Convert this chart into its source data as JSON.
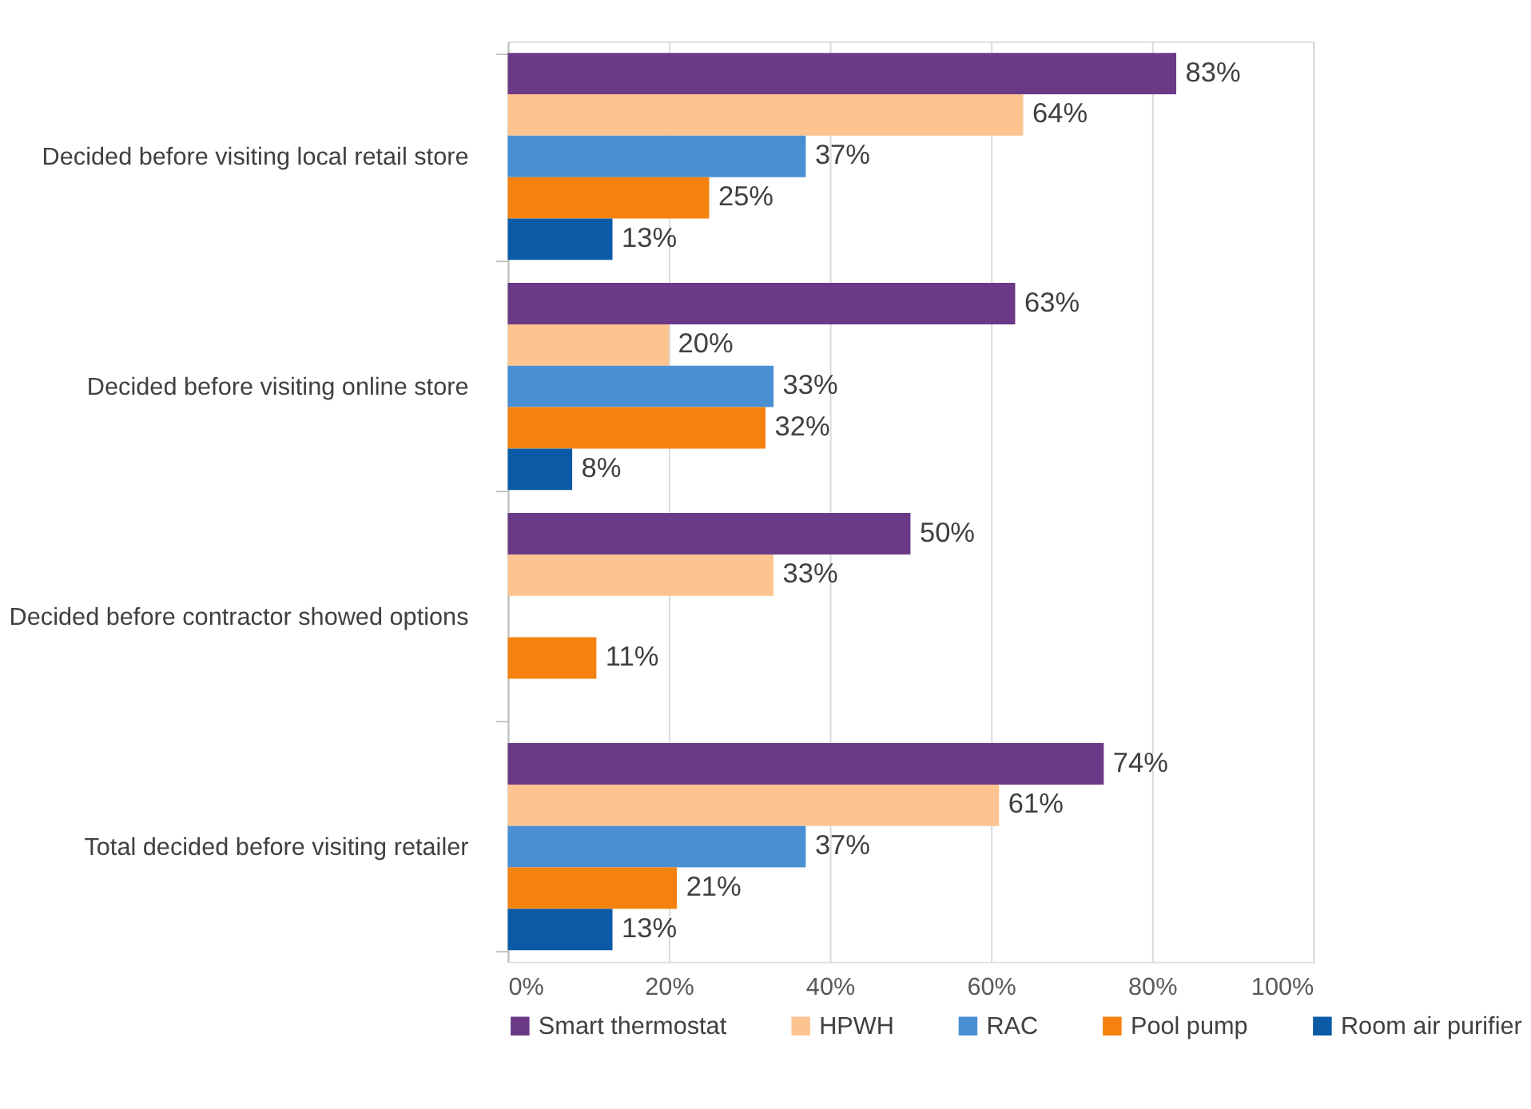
{
  "chart_data": {
    "type": "bar",
    "orientation": "horizontal",
    "categories": [
      "Decided before visiting local retail store",
      "Decided before visiting online store",
      "Decided before contractor showed options",
      "Total decided before visiting retailer"
    ],
    "series": [
      {
        "name": "Smart thermostat",
        "color": "#6a3a87",
        "values": [
          83,
          63,
          50,
          74
        ],
        "value_labels": [
          "83%",
          "63%",
          "50%",
          "74%"
        ]
      },
      {
        "name": "HPWH",
        "color": "#fdc491",
        "values": [
          64,
          20,
          33,
          61
        ],
        "value_labels": [
          "64%",
          "20%",
          "33%",
          "61%"
        ]
      },
      {
        "name": "RAC",
        "color": "#4a8fd2",
        "values": [
          37,
          33,
          null,
          37
        ],
        "value_labels": [
          "37%",
          "33%",
          null,
          "37%"
        ]
      },
      {
        "name": "Pool pump",
        "color": "#f5820f",
        "values": [
          25,
          32,
          11,
          21
        ],
        "value_labels": [
          "25%",
          "32%",
          "11%",
          "21%"
        ]
      },
      {
        "name": "Room air purifier",
        "color": "#0a5aa5",
        "values": [
          13,
          8,
          null,
          13
        ],
        "value_labels": [
          "13%",
          "8%",
          null,
          "13%"
        ]
      }
    ],
    "xlim": [
      0,
      100
    ],
    "xticks": [
      {
        "value": 0,
        "label": "0%"
      },
      {
        "value": 20,
        "label": "20%"
      },
      {
        "value": 40,
        "label": "40%"
      },
      {
        "value": 60,
        "label": "60%"
      },
      {
        "value": 80,
        "label": "80%"
      },
      {
        "value": 100,
        "label": "100%"
      }
    ],
    "grid": "x",
    "legend": "bottom"
  }
}
